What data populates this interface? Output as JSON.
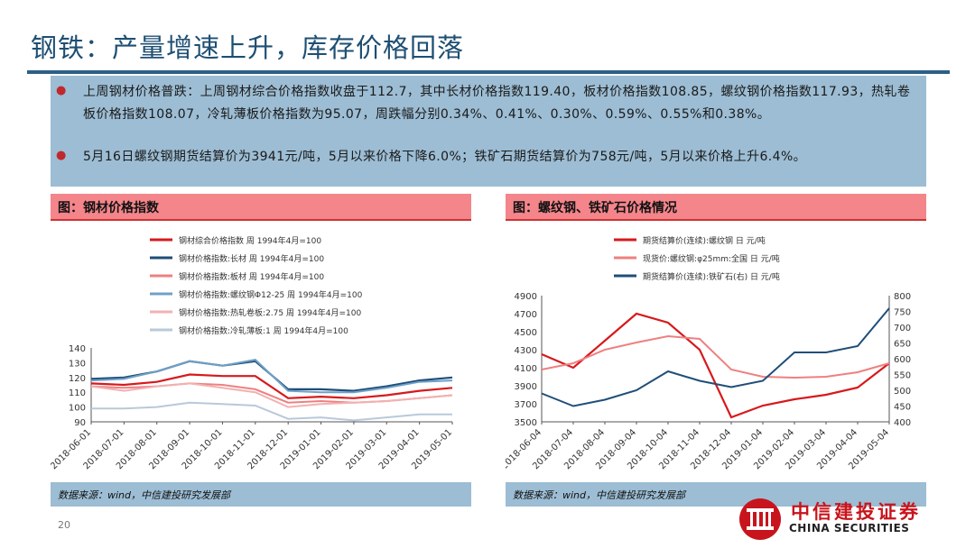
{
  "title": "钢铁：产量增速上升，库存价格回落",
  "bullets": [
    "上周钢材价格普跌：上周钢材综合价格指数收盘于112.7，其中长材价格指数119.40，板材价格指数108.85，螺纹钢价格指数117.93，热轧卷板价格指数108.07，冷轧薄板价格指数为95.07，周跌幅分别0.34%、0.41%、0.30%、0.59%、0.55%和0.38%。",
    "5月16日螺纹钢期货结算价为3941元/吨，5月以来价格下降6.0%；铁矿石期货结算价为758元/吨，5月以来价格上升6.4%。"
  ],
  "colors": {
    "bullet": "#c0282c",
    "header": "#f4858b",
    "footer": "#9cbdd4",
    "title": "#1e4f73"
  },
  "panel_left": {
    "header": "图：钢材价格指数",
    "source": "数据来源：wind，中信建投研究发展部"
  },
  "panel_right": {
    "header": "图：螺纹钢、铁矿石价格情况",
    "source": "数据来源：wind，中信建投研究发展部"
  },
  "page_number": "20",
  "logo": {
    "cn": "中信建投证券",
    "en": "CHINA SECURITIES"
  },
  "chart_data": [
    {
      "type": "line",
      "grid": false,
      "legend_position": "top-left",
      "x": [
        "2018-06-01",
        "2018-07-01",
        "2018-08-01",
        "2018-09-01",
        "2018-10-01",
        "2018-11-01",
        "2018-12-01",
        "2019-01-01",
        "2019-02-01",
        "2019-03-01",
        "2019-04-01",
        "2019-05-01"
      ],
      "ylim": [
        90,
        140
      ],
      "yticks": [
        90,
        100,
        110,
        120,
        130,
        140
      ],
      "series": [
        {
          "name": "钢材综合价格指数 周 1994年4月=100",
          "color": "#d7191c",
          "width": 2.2,
          "values": [
            116,
            115,
            117,
            122,
            121,
            121,
            106,
            107,
            106,
            108,
            111,
            113
          ]
        },
        {
          "name": "钢材价格指数:长材 周 1994年4月=100",
          "color": "#1f4e79",
          "width": 2.2,
          "values": [
            119,
            120,
            124,
            131,
            128,
            131,
            112,
            112,
            111,
            114,
            118,
            120
          ]
        },
        {
          "name": "钢材价格指数:板材 周 1994年4月=100",
          "color": "#ef8080",
          "width": 2,
          "values": [
            114,
            113,
            114,
            116,
            115,
            112,
            103,
            104,
            103,
            104,
            106,
            108
          ]
        },
        {
          "name": "钢材价格指数:螺纹钢Φ12-25 周 1994年4月=100",
          "color": "#6fa0c8",
          "width": 2,
          "values": [
            118,
            119,
            124,
            131,
            128,
            132,
            111,
            110,
            110,
            113,
            117,
            118
          ]
        },
        {
          "name": "钢材价格指数:热轧卷板:2.75 周 1994年4月=100",
          "color": "#f2b1b1",
          "width": 2,
          "values": [
            114,
            111,
            114,
            116,
            113,
            110,
            100,
            102,
            103,
            104,
            106,
            108
          ]
        },
        {
          "name": "钢材价格指数:冷轧薄板:1 周 1994年4月=100",
          "color": "#b8c9da",
          "width": 2,
          "values": [
            99,
            99,
            100,
            103,
            102,
            101,
            92,
            93,
            91,
            93,
            95,
            95
          ]
        }
      ]
    },
    {
      "type": "line",
      "grid": false,
      "legend_position": "top-left",
      "x": [
        "2018-06-04",
        "2018-07-04",
        "2018-08-04",
        "2018-09-04",
        "2018-10-04",
        "2018-11-04",
        "2018-12-04",
        "2019-01-04",
        "2019-02-04",
        "2019-03-04",
        "2019-04-04",
        "2019-05-04"
      ],
      "ylim_left": [
        3500,
        4900
      ],
      "yticks_left": [
        3500,
        3700,
        3900,
        4100,
        4300,
        4500,
        4700,
        4900
      ],
      "ylim_right": [
        400,
        800
      ],
      "yticks_right": [
        400,
        450,
        500,
        550,
        600,
        650,
        700,
        750,
        800
      ],
      "series": [
        {
          "name": "期货结算价(连续):螺纹钢 日 元/吨",
          "axis": "left",
          "color": "#d7191c",
          "width": 2.2,
          "values": [
            4250,
            4100,
            4400,
            4700,
            4600,
            4300,
            3550,
            3680,
            3750,
            3800,
            3880,
            4150
          ]
        },
        {
          "name": "现货价:螺纹钢:φ25mm:全国 日 元/吨",
          "axis": "left",
          "color": "#ef8080",
          "width": 2,
          "values": [
            4080,
            4150,
            4300,
            4380,
            4450,
            4420,
            4080,
            4000,
            3990,
            4000,
            4050,
            4150
          ]
        },
        {
          "name": "期货结算价(连续):铁矿石(右) 日 元/吨",
          "axis": "right",
          "color": "#1f4e79",
          "width": 2,
          "values": [
            490,
            450,
            470,
            500,
            560,
            530,
            510,
            530,
            620,
            620,
            640,
            760
          ]
        }
      ]
    }
  ]
}
